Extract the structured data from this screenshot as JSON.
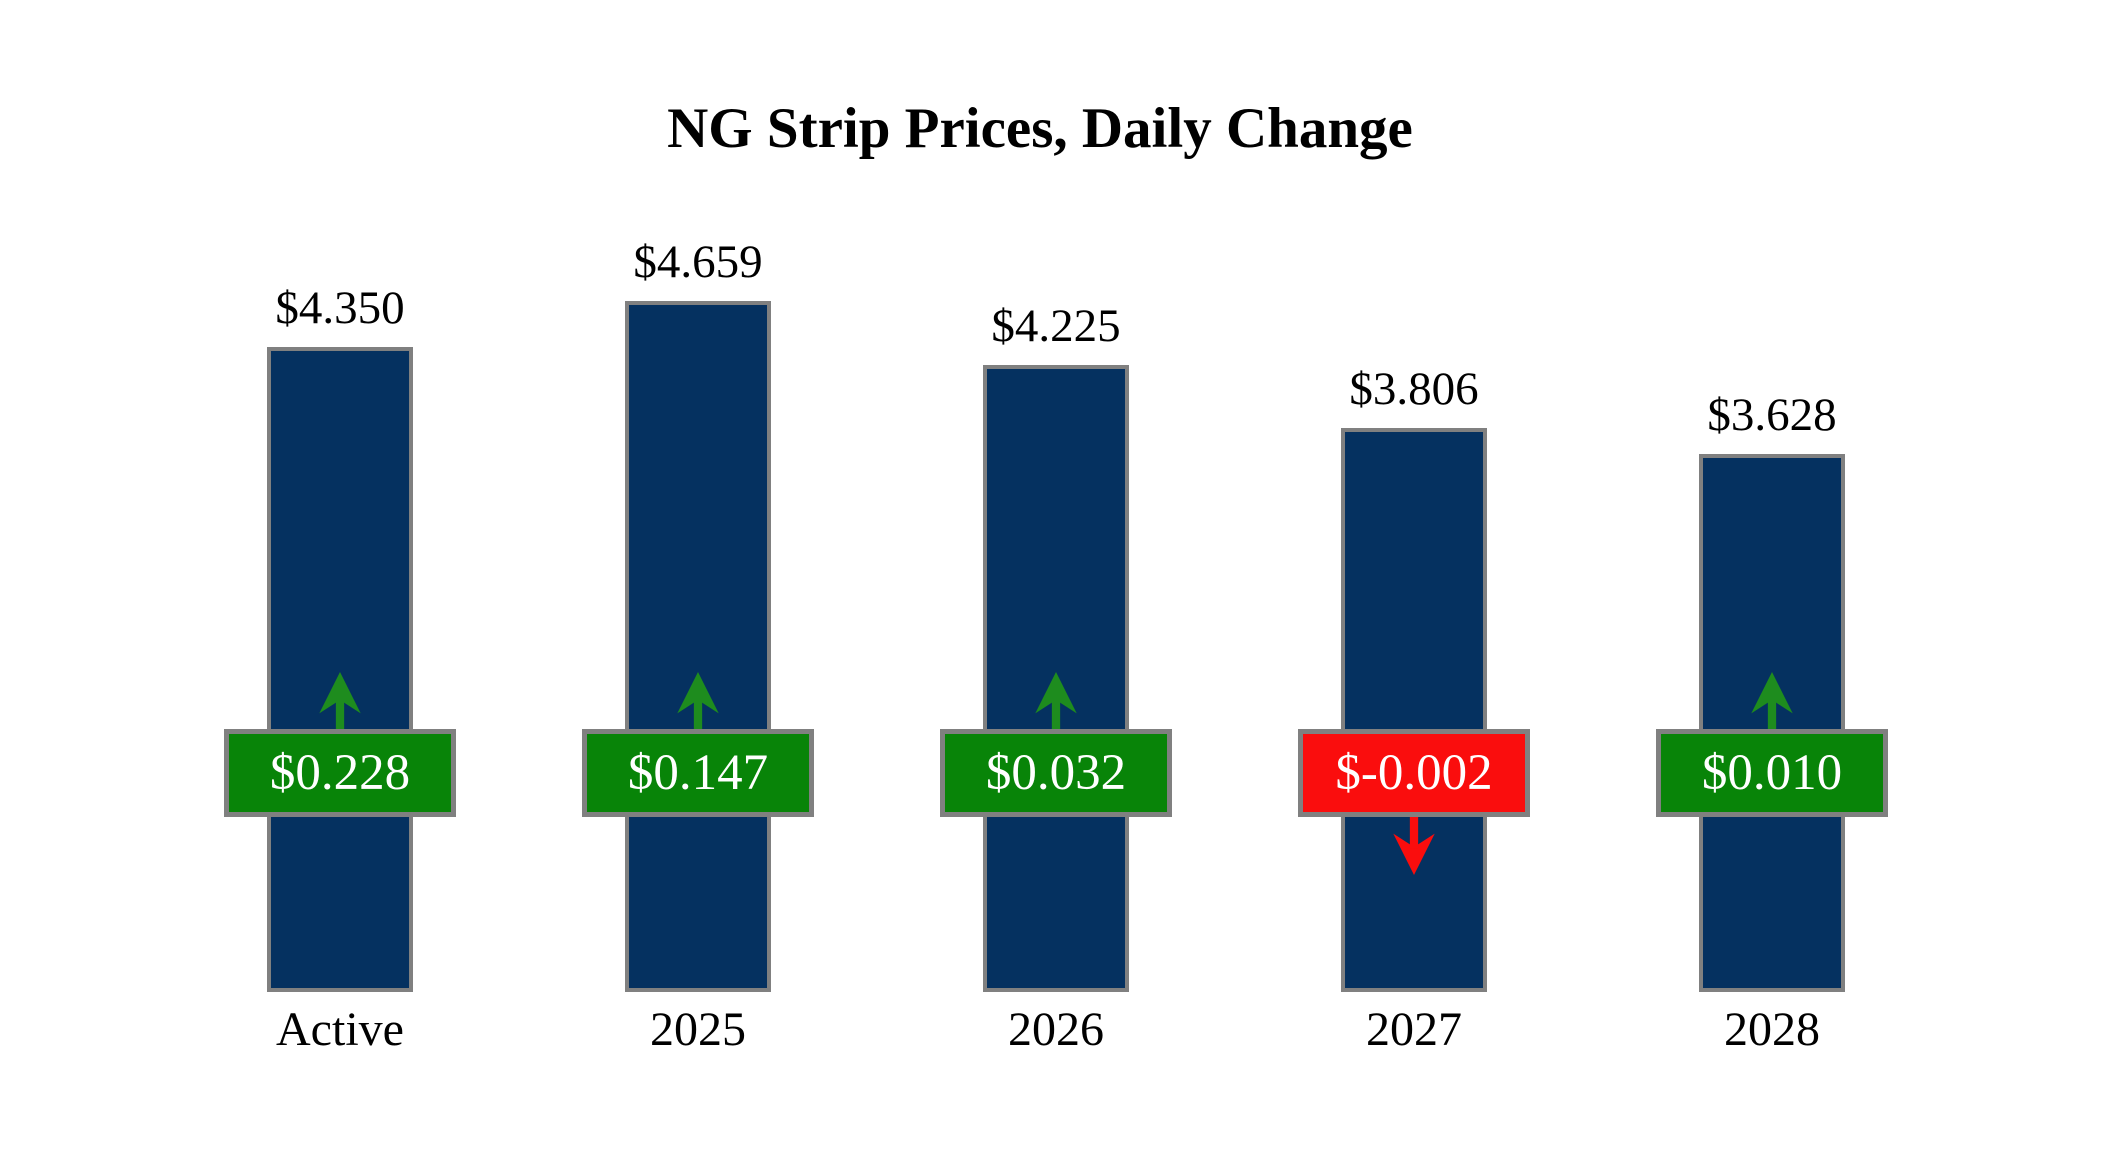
{
  "page": {
    "background_color": "#ffffff"
  },
  "chart_data": {
    "type": "bar",
    "title": "NG Strip Prices, Daily Change",
    "categories": [
      "Active",
      "2025",
      "2026",
      "2027",
      "2028"
    ],
    "values": [
      4.35,
      4.659,
      4.225,
      3.806,
      3.628
    ],
    "price_labels": [
      "$4.350",
      "$4.659",
      "$4.225",
      "$3.806",
      "$3.628"
    ],
    "changes": [
      0.228,
      0.147,
      0.032,
      -0.002,
      0.01
    ],
    "change_labels": [
      "$0.228",
      "$0.147",
      "$0.032",
      "$-0.002",
      "$0.010"
    ],
    "change_directions": [
      "up",
      "up",
      "up",
      "down",
      "up"
    ],
    "xlabel": "",
    "ylabel": "",
    "ylim": [
      0,
      4.8
    ],
    "grid": false,
    "legend": "none",
    "colors": {
      "bar": "#053160",
      "bar_border": "#808080",
      "badge_positive": "#088408",
      "badge_negative": "#fa0d0d",
      "badge_border": "#808080",
      "badge_text": "#ffffff",
      "arrow_up": "#1e8c1e",
      "arrow_down": "#fa0d0d",
      "title_text": "#000000",
      "label_text": "#000000"
    }
  }
}
